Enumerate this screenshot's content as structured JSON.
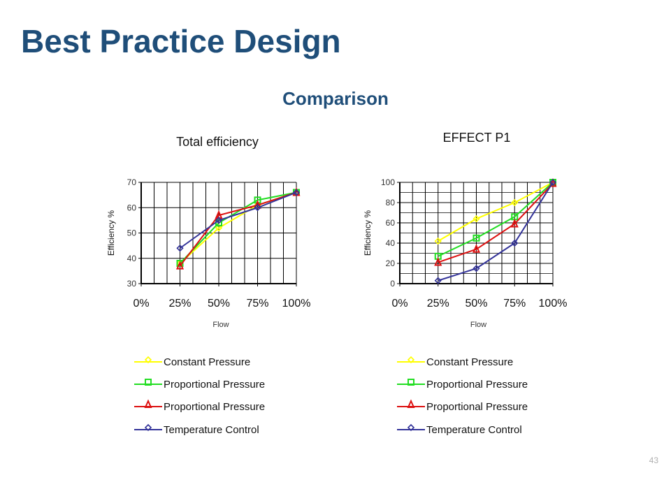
{
  "slide": {
    "title": "Best Practice Design",
    "subtitle": "Comparison",
    "page_number": "43"
  },
  "colors": {
    "title": "#1f4e79",
    "constant_pressure": "#ffff00",
    "proportional_pressure_green": "#22dd22",
    "proportional_pressure_red": "#dd1111",
    "temperature_control": "#333399"
  },
  "chart_data": [
    {
      "type": "line",
      "title": "Total efficiency",
      "xlabel": "Flow",
      "ylabel": "Efficiency %",
      "x": [
        "0%",
        "25%",
        "50%",
        "75%",
        "100%"
      ],
      "ylim": [
        30,
        70
      ],
      "yticks": [
        "30",
        "40",
        "50",
        "60",
        "70"
      ],
      "grid": true,
      "legend_position": "bottom",
      "series": [
        {
          "name": "Constant Pressure",
          "marker": "diamond",
          "color": "#ffff00",
          "values": [
            null,
            38,
            52,
            61,
            66
          ]
        },
        {
          "name": "Proportional Pressure",
          "marker": "square",
          "color": "#22dd22",
          "values": [
            null,
            38,
            54,
            63,
            66
          ]
        },
        {
          "name": "Proportional Pressure",
          "marker": "triangle",
          "color": "#dd1111",
          "values": [
            null,
            37,
            57,
            61,
            66
          ]
        },
        {
          "name": "Temperature Control",
          "marker": "diamond",
          "color": "#333399",
          "values": [
            null,
            44,
            55,
            60,
            66
          ]
        }
      ]
    },
    {
      "type": "line",
      "title": "EFFECT P1",
      "xlabel": "Flow",
      "ylabel": "Efficiency %",
      "x": [
        "0%",
        "25%",
        "50%",
        "75%",
        "100%"
      ],
      "ylim": [
        0,
        100
      ],
      "yticks": [
        "0",
        "20",
        "40",
        "60",
        "80",
        "100"
      ],
      "grid": true,
      "legend_position": "bottom",
      "series": [
        {
          "name": "Constant Pressure",
          "marker": "diamond",
          "color": "#ffff00",
          "values": [
            null,
            42,
            64,
            80,
            100
          ]
        },
        {
          "name": "Proportional Pressure",
          "marker": "square",
          "color": "#22dd22",
          "values": [
            null,
            27,
            45,
            66,
            100
          ]
        },
        {
          "name": "Proportional Pressure",
          "marker": "triangle",
          "color": "#dd1111",
          "values": [
            null,
            21,
            34,
            59,
            99
          ]
        },
        {
          "name": "Temperature Control",
          "marker": "diamond",
          "color": "#333399",
          "values": [
            null,
            3,
            15,
            40,
            100
          ]
        }
      ]
    }
  ]
}
